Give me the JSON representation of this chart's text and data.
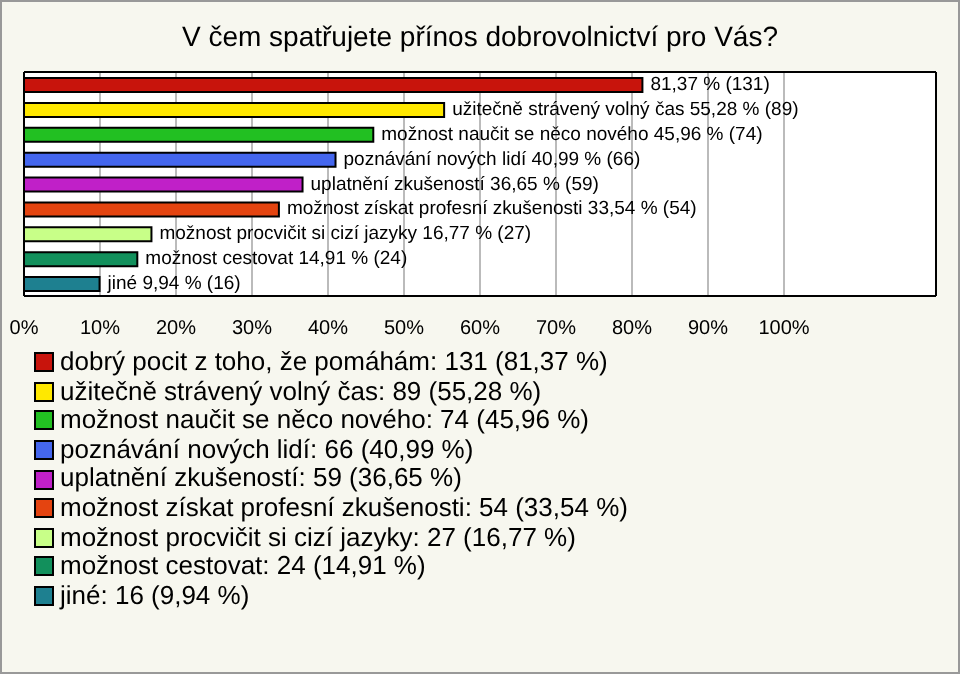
{
  "chart_data": {
    "type": "bar",
    "orientation": "horizontal",
    "title": "V čem spatřujete přínos dobrovolnictví pro Vás?",
    "categories": [
      null,
      null,
      null,
      null,
      null,
      null,
      null,
      null,
      null
    ],
    "series": [
      {
        "name": "dobrý pocit z toho, že pomáhám: 131 (81,37 %)",
        "color": "#c8140c",
        "values": [
          81.37,
          null,
          null,
          null,
          null,
          null,
          null,
          null,
          null
        ],
        "value_labels": [
          "81,37 % (131)",
          null,
          null,
          null,
          null,
          null,
          null,
          null,
          null
        ]
      },
      {
        "name": "užitečně strávený volný čas: 89 (55,28 %)",
        "color": "#ffe800",
        "values": [
          null,
          55.28,
          null,
          null,
          null,
          null,
          null,
          null,
          null
        ],
        "value_labels": [
          null,
          "užitečně strávený volný čas 55,28 % (89)",
          null,
          null,
          null,
          null,
          null,
          null,
          null
        ]
      },
      {
        "name": "možnost naučit se něco nového: 74 (45,96 %)",
        "color": "#22c022",
        "values": [
          null,
          null,
          45.96,
          null,
          null,
          null,
          null,
          null,
          null
        ],
        "value_labels": [
          null,
          null,
          "možnost naučit se něco nového 45,96 % (74)",
          null,
          null,
          null,
          null,
          null,
          null
        ]
      },
      {
        "name": "poznávání nových lidí: 66 (40,99 %)",
        "color": "#4466ee",
        "values": [
          null,
          null,
          null,
          40.99,
          null,
          null,
          null,
          null,
          null
        ],
        "value_labels": [
          null,
          null,
          null,
          "poznávání nových lidí 40,99 % (66)",
          null,
          null,
          null,
          null,
          null
        ]
      },
      {
        "name": "uplatnění zkušeností: 59 (36,65 %)",
        "color": "#c020c8",
        "values": [
          null,
          null,
          null,
          null,
          36.65,
          null,
          null,
          null,
          null
        ],
        "value_labels": [
          null,
          null,
          null,
          null,
          "uplatnění zkušeností 36,65 % (59)",
          null,
          null,
          null,
          null
        ]
      },
      {
        "name": "možnost získat profesní zkušenosti: 54 (33,54 %)",
        "color": "#e44410",
        "values": [
          null,
          null,
          null,
          null,
          null,
          33.54,
          null,
          null,
          null
        ],
        "value_labels": [
          null,
          null,
          null,
          null,
          null,
          "možnost získat profesní zkušenosti 33,54 % (54)",
          null,
          null,
          null
        ]
      },
      {
        "name": "možnost procvičit si cizí jazyky: 27 (16,77 %)",
        "color": "#c8ff88",
        "values": [
          null,
          null,
          null,
          null,
          null,
          null,
          16.77,
          null,
          null
        ],
        "value_labels": [
          null,
          null,
          null,
          null,
          null,
          null,
          "možnost procvičit si cizí jazyky 16,77 % (27)",
          null,
          null
        ]
      },
      {
        "name": "možnost cestovat: 24 (14,91 %)",
        "color": "#12905c",
        "values": [
          null,
          null,
          null,
          null,
          null,
          null,
          null,
          14.91,
          null
        ],
        "value_labels": [
          null,
          null,
          null,
          null,
          null,
          null,
          null,
          "možnost cestovat 14,91 % (24)",
          null
        ]
      },
      {
        "name": "jiné: 16 (9,94 %)",
        "color": "#1e8090",
        "values": [
          null,
          null,
          null,
          null,
          null,
          null,
          null,
          null,
          9.94
        ],
        "value_labels": [
          null,
          null,
          null,
          null,
          null,
          null,
          null,
          null,
          "jiné 9,94 % (16)"
        ]
      }
    ],
    "xlim": [
      0,
      120
    ],
    "xticks": [
      {
        "value": 0,
        "label": "0%"
      },
      {
        "value": 10,
        "label": "10%"
      },
      {
        "value": 20,
        "label": "20%"
      },
      {
        "value": 30,
        "label": "30%"
      },
      {
        "value": 40,
        "label": "40%"
      },
      {
        "value": 50,
        "label": "50%"
      },
      {
        "value": 60,
        "label": "60%"
      },
      {
        "value": 70,
        "label": "70%"
      },
      {
        "value": 80,
        "label": "80%"
      },
      {
        "value": 90,
        "label": "90%"
      },
      {
        "value": 100,
        "label": "100%"
      }
    ],
    "grid": "x",
    "legend": "bottom",
    "tick_labels": "x"
  }
}
